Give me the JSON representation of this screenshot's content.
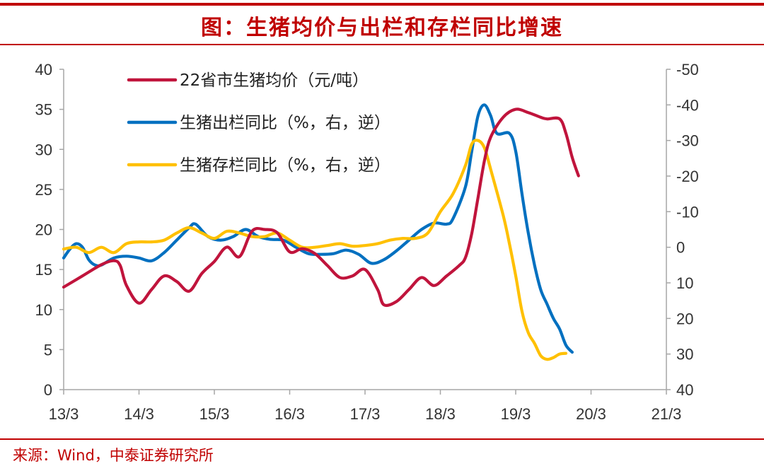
{
  "header": {
    "title": "图：生猪均价与出栏和存栏同比增速"
  },
  "footer": {
    "source": "来源：Wind，中泰证券研究所"
  },
  "colors": {
    "accent": "#c00000",
    "price": "#c0143c",
    "slaughter": "#0070c0",
    "inventory": "#ffc000",
    "axis": "#a6a6a6"
  },
  "chart_data": {
    "type": "line",
    "title": "生猪均价与出栏和存栏同比增速",
    "xlabel": "",
    "ylabel_left": "",
    "ylabel_right": "",
    "x_ticks": [
      "13/3",
      "14/3",
      "15/3",
      "16/3",
      "17/3",
      "18/3",
      "19/3",
      "20/3",
      "21/3"
    ],
    "x_range": [
      0,
      96
    ],
    "left_axis": {
      "ylim": [
        0,
        40
      ],
      "ticks": [
        "0",
        "5",
        "10",
        "15",
        "20",
        "25",
        "30",
        "35",
        "40"
      ]
    },
    "right_axis": {
      "ylim": [
        -50,
        40
      ],
      "inverted": true,
      "ticks": [
        "-50",
        "-40",
        "-30",
        "-20",
        "-10",
        "0",
        "10",
        "20",
        "30",
        "40"
      ]
    },
    "legend": [
      {
        "key": "price",
        "label": "22省市生猪均价（元/吨）"
      },
      {
        "key": "slaughter",
        "label": "生猪出栏同比（%，右，逆）"
      },
      {
        "key": "inventory",
        "label": "生猪存栏同比（%，右，逆）"
      }
    ],
    "series": [
      {
        "name": "22省市生猪均价（元/吨）",
        "key": "price",
        "axis": "left",
        "points": [
          [
            0,
            12.8
          ],
          [
            3,
            14.2
          ],
          [
            6,
            15.6
          ],
          [
            8,
            16.1
          ],
          [
            9,
            15.5
          ],
          [
            10,
            13.0
          ],
          [
            12,
            10.8
          ],
          [
            14,
            12.5
          ],
          [
            16,
            14.2
          ],
          [
            18,
            13.5
          ],
          [
            20,
            12.3
          ],
          [
            22,
            14.5
          ],
          [
            24,
            16.0
          ],
          [
            26,
            17.8
          ],
          [
            28,
            16.6
          ],
          [
            30,
            19.8
          ],
          [
            32,
            20.0
          ],
          [
            34,
            19.6
          ],
          [
            36,
            17.2
          ],
          [
            38,
            17.6
          ],
          [
            40,
            17.0
          ],
          [
            42,
            15.5
          ],
          [
            44,
            14.0
          ],
          [
            46,
            14.2
          ],
          [
            48,
            15.0
          ],
          [
            50,
            12.5
          ],
          [
            51,
            10.6
          ],
          [
            53,
            11.0
          ],
          [
            55,
            12.5
          ],
          [
            57,
            14.0
          ],
          [
            59,
            13.0
          ],
          [
            61,
            14.2
          ],
          [
            63,
            15.5
          ],
          [
            64,
            16.5
          ],
          [
            65,
            19.5
          ],
          [
            66,
            24.0
          ],
          [
            67,
            28.5
          ],
          [
            68,
            31.5
          ],
          [
            70,
            34.0
          ],
          [
            72,
            35.0
          ],
          [
            74,
            34.6
          ],
          [
            76,
            34.0
          ],
          [
            77,
            33.8
          ],
          [
            79,
            33.8
          ],
          [
            80,
            32.0
          ],
          [
            81,
            29.0
          ],
          [
            82,
            26.7
          ]
        ]
      },
      {
        "name": "生猪出栏同比（%，右，逆）",
        "key": "slaughter",
        "axis": "right",
        "points": [
          [
            0,
            3.0
          ],
          [
            1,
            0.5
          ],
          [
            2,
            -1.0
          ],
          [
            3,
            0.0
          ],
          [
            4,
            3.5
          ],
          [
            5,
            5.0
          ],
          [
            6,
            5.0
          ],
          [
            8,
            3.0
          ],
          [
            10,
            2.5
          ],
          [
            12,
            3.0
          ],
          [
            14,
            3.8
          ],
          [
            16,
            1.5
          ],
          [
            18,
            -2.0
          ],
          [
            20,
            -5.5
          ],
          [
            21,
            -6.5
          ],
          [
            23,
            -3.0
          ],
          [
            25,
            -2.0
          ],
          [
            27,
            -3.0
          ],
          [
            29,
            -5.0
          ],
          [
            31,
            -3.0
          ],
          [
            33,
            -2.2
          ],
          [
            35,
            -2.0
          ],
          [
            37,
            0.0
          ],
          [
            39,
            1.8
          ],
          [
            41,
            2.0
          ],
          [
            43,
            1.8
          ],
          [
            45,
            0.8
          ],
          [
            47,
            2.0
          ],
          [
            49,
            4.5
          ],
          [
            51,
            3.5
          ],
          [
            53,
            1.0
          ],
          [
            55,
            -2.0
          ],
          [
            57,
            -5.0
          ],
          [
            59,
            -6.8
          ],
          [
            61,
            -6.5
          ],
          [
            62,
            -8.0
          ],
          [
            64,
            -17.0
          ],
          [
            65,
            -27.0
          ],
          [
            66,
            -37.0
          ],
          [
            67,
            -40.0
          ],
          [
            68,
            -37.0
          ],
          [
            69,
            -32.0
          ],
          [
            71,
            -32.0
          ],
          [
            72,
            -27.0
          ],
          [
            73,
            -15.0
          ],
          [
            74,
            -4.0
          ],
          [
            75,
            5.0
          ],
          [
            76,
            12.0
          ],
          [
            77,
            16.0
          ],
          [
            78,
            20.0
          ],
          [
            79,
            23.0
          ],
          [
            80,
            27.5
          ],
          [
            81,
            29.5
          ]
        ]
      },
      {
        "name": "生猪存栏同比（%，右，逆）",
        "key": "inventory",
        "axis": "right",
        "points": [
          [
            0,
            0.5
          ],
          [
            2,
            0.0
          ],
          [
            4,
            1.5
          ],
          [
            6,
            0.0
          ],
          [
            8,
            1.5
          ],
          [
            10,
            -1.0
          ],
          [
            12,
            -1.5
          ],
          [
            14,
            -1.5
          ],
          [
            16,
            -2.0
          ],
          [
            18,
            -4.0
          ],
          [
            20,
            -5.5
          ],
          [
            22,
            -4.0
          ],
          [
            24,
            -2.5
          ],
          [
            26,
            -4.5
          ],
          [
            28,
            -4.0
          ],
          [
            30,
            -3.0
          ],
          [
            32,
            -3.0
          ],
          [
            34,
            -4.0
          ],
          [
            36,
            -2.0
          ],
          [
            38,
            0.0
          ],
          [
            40,
            0.0
          ],
          [
            42,
            -0.5
          ],
          [
            44,
            -1.0
          ],
          [
            46,
            -0.3
          ],
          [
            48,
            -0.5
          ],
          [
            50,
            -1.0
          ],
          [
            52,
            -2.0
          ],
          [
            54,
            -2.5
          ],
          [
            56,
            -2.5
          ],
          [
            58,
            -4.0
          ],
          [
            60,
            -10.0
          ],
          [
            62,
            -15.0
          ],
          [
            64,
            -23.0
          ],
          [
            65,
            -29.0
          ],
          [
            66,
            -30.0
          ],
          [
            67,
            -28.0
          ],
          [
            68,
            -22.0
          ],
          [
            70,
            -9.0
          ],
          [
            71,
            -1.0
          ],
          [
            72,
            8.0
          ],
          [
            73,
            18.0
          ],
          [
            74,
            24.0
          ],
          [
            75,
            27.0
          ],
          [
            76,
            30.5
          ],
          [
            77,
            31.5
          ],
          [
            78,
            31.0
          ],
          [
            79,
            30.0
          ],
          [
            80,
            29.8
          ]
        ]
      }
    ]
  }
}
